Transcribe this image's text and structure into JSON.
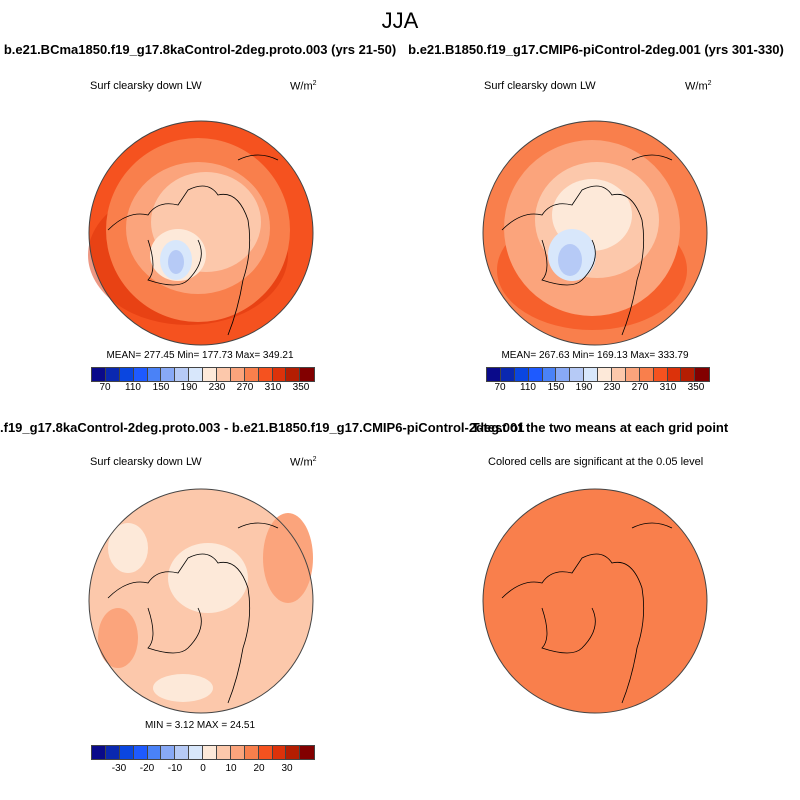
{
  "title": "JJA",
  "panels": [
    {
      "title": "b.e21.BCma1850.f19_g17.8kaControl-2deg.proto.003 (yrs 21-50)",
      "variable": "Surf clearsky down LW",
      "units_base": "W/m",
      "units_exp": "2",
      "stats": "MEAN= 277.45  Min= 177.73  Max= 349.21",
      "ticks": [
        "70",
        "110",
        "150",
        "190",
        "230",
        "270",
        "310",
        "350"
      ]
    },
    {
      "title": "b.e21.B1850.f19_g17.CMIP6-piControl-2deg.001 (yrs 301-330)",
      "variable": "Surf clearsky down LW",
      "units_base": "W/m",
      "units_exp": "2",
      "stats": "MEAN= 267.63  Min= 169.13  Max= 333.79",
      "ticks": [
        "70",
        "110",
        "150",
        "190",
        "230",
        "270",
        "310",
        "350"
      ]
    },
    {
      "title": ".f19_g17.8kaControl-2deg.proto.003 - b.e21.B1850.f19_g17.CMIP6-piControl-2deg.001",
      "variable": "Surf clearsky down LW",
      "units_base": "W/m",
      "units_exp": "2",
      "stats": "MIN =   3.12 MAX =  24.51",
      "ticks": [
        "-30",
        "-20",
        "-10",
        "0",
        "10",
        "20",
        "30"
      ]
    },
    {
      "title": "T-test of the two means at each grid point",
      "variable": "Colored cells are significant at the 0.05 level"
    }
  ],
  "colormap": [
    "#0a0a8a",
    "#0a28b0",
    "#0a46e0",
    "#1e5aff",
    "#4a82f7",
    "#88a9f6",
    "#b6caf6",
    "#d8e7fb",
    "#fde9d9",
    "#fcc8ab",
    "#fba47c",
    "#f97f4c",
    "#f5521f",
    "#dc320a",
    "#b41e02",
    "#820000"
  ],
  "ttest_fill": "#f97f4c"
}
